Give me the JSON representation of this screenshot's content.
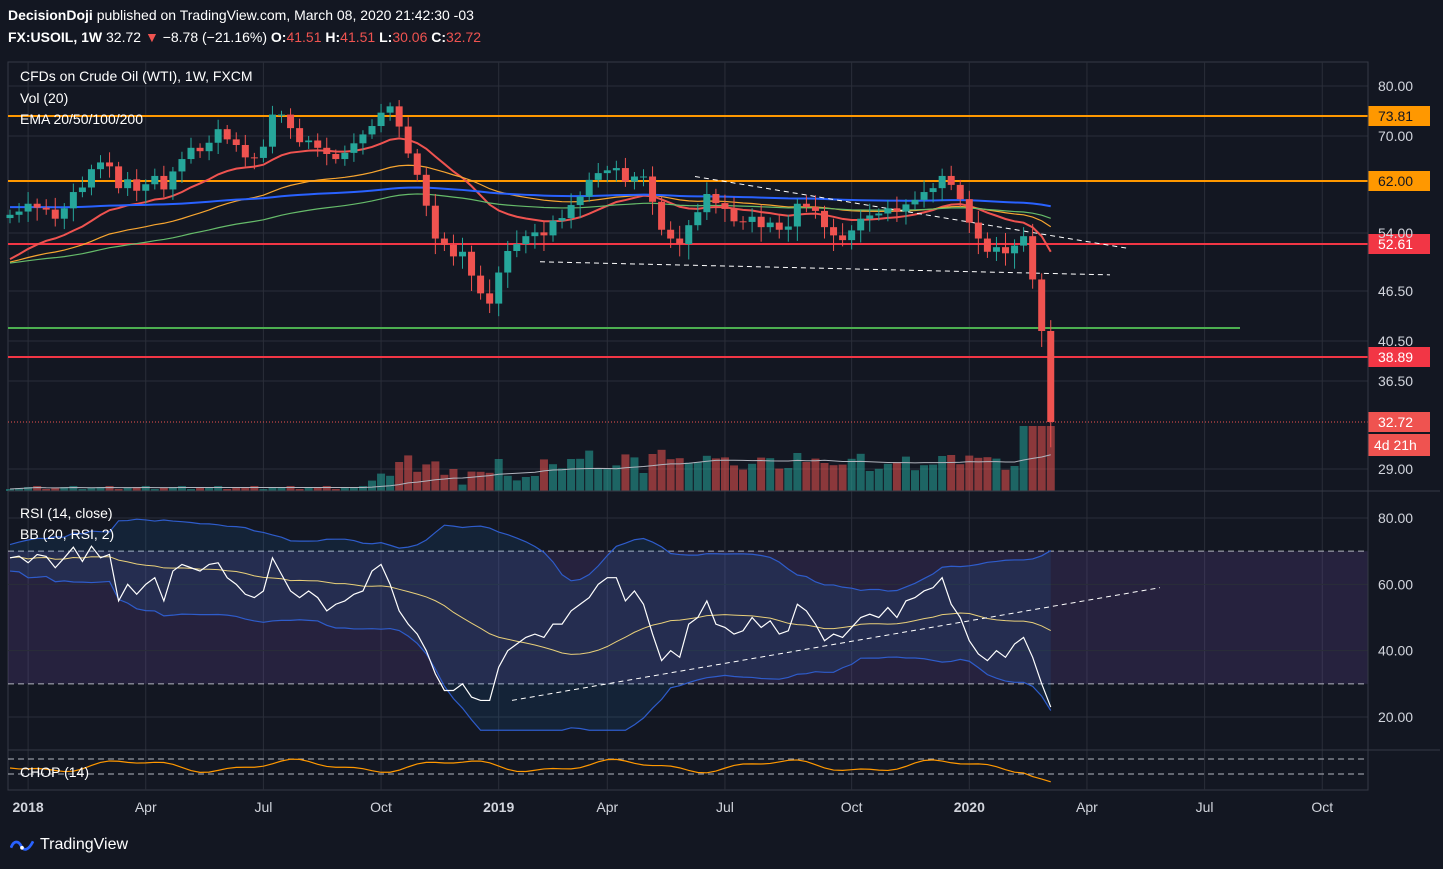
{
  "header": {
    "author": "DecisionDoji",
    "published_text": "published on TradingView.com, March 08, 2020 21:42:30 -03",
    "symbol": "FX:USOIL, 1W",
    "last": "32.72",
    "change": "−8.78 (−21.16%)",
    "open_label": "O:",
    "open": "41.51",
    "high_label": "H:",
    "high": "41.51",
    "low_label": "L:",
    "low": "30.06",
    "close_label": "C:",
    "close": "32.72"
  },
  "legend": {
    "main_title": "CFDs on Crude Oil (WTI), 1W, FXCM",
    "vol": "Vol (20)",
    "ema": "EMA 20/50/100/200",
    "rsi": "RSI (14, close)",
    "bb": "BB (20, RSI, 2)",
    "chop": "CHOP (14)"
  },
  "brand": {
    "name": "TradingView",
    "logo_icon": "tradingview-logo-icon"
  },
  "colors": {
    "background": "#131722",
    "up": "#26a69a",
    "down": "#ef5350",
    "orange_level": "#ff9800",
    "red_level": "#f23645",
    "green_level": "#4caf50",
    "ema20": "#ef5350",
    "ema50": "#f7a530",
    "ema100": "#66bb6a",
    "ema200": "#2962ff",
    "rsi": "#ffffff",
    "bb_band": "#2e5ccb",
    "bb_basis": "#e8cf7a",
    "chop": "#ff9800"
  },
  "chart_data": [
    {
      "type": "candlestick",
      "title": "CFDs on Crude Oil (WTI), 1W, FXCM",
      "x_tick_labels": [
        "2018",
        "Apr",
        "Jul",
        "Oct",
        "2019",
        "Apr",
        "Jul",
        "Oct",
        "2020",
        "Apr",
        "Jul",
        "Oct"
      ],
      "x_tick_weeks": [
        2,
        15,
        28,
        41,
        54,
        66,
        79,
        93,
        106,
        119,
        132,
        145
      ],
      "y_tick_labels": [
        "80.00",
        "70.00",
        "54.00",
        "46.50",
        "40.50",
        "36.50",
        "29.00"
      ],
      "y_tick_values": [
        80.0,
        70.0,
        54.0,
        46.5,
        40.5,
        36.5,
        29.0
      ],
      "ylim": [
        28.0,
        82.0
      ],
      "price_levels": [
        {
          "value": 73.81,
          "label": "73.81",
          "color": "#ff9800"
        },
        {
          "value": 62.0,
          "label": "62.00",
          "color": "#ff9800"
        },
        {
          "value": 52.61,
          "label": "52.61",
          "color": "#f23645"
        },
        {
          "value": 38.89,
          "label": "38.89",
          "color": "#f23645"
        },
        {
          "value": 41.8,
          "label": "",
          "color": "#4caf50"
        }
      ],
      "last_price": {
        "value": 32.72,
        "label": "32.72",
        "countdown": "4d 21h"
      },
      "close": [
        56.8,
        57.3,
        58.5,
        57.9,
        57.6,
        56.2,
        57.8,
        60.3,
        61.0,
        64.1,
        65.3,
        64.6,
        60.9,
        62.3,
        60.5,
        61.5,
        62.9,
        60.7,
        63.7,
        65.9,
        67.9,
        67.3,
        68.8,
        71.3,
        69.4,
        68.4,
        66.2,
        66.1,
        68.1,
        74.1,
        74.1,
        71.5,
        68.9,
        69.2,
        67.9,
        66.8,
        65.9,
        67.0,
        68.7,
        70.3,
        71.9,
        74.5,
        75.8,
        71.8,
        66.9,
        63.1,
        58.2,
        53.3,
        52.5,
        51.0,
        51.6,
        48.5,
        46.2,
        44.9,
        48.9,
        51.7,
        52.6,
        53.6,
        54.1,
        53.7,
        55.9,
        56.3,
        58.3,
        59.6,
        62.2,
        63.4,
        63.9,
        64.3,
        61.9,
        62.8,
        62.8,
        58.8,
        54.5,
        53.3,
        52.6,
        55.2,
        57.2,
        60.0,
        58.6,
        57.7,
        55.8,
        55.7,
        56.5,
        54.9,
        55.6,
        54.5,
        55.0,
        58.5,
        58.0,
        57.4,
        54.9,
        53.7,
        53.1,
        54.4,
        56.2,
        56.7,
        57.0,
        57.8,
        57.3,
        58.4,
        59.1,
        60.3,
        60.9,
        62.9,
        61.4,
        59.2,
        55.6,
        53.3,
        51.6,
        52.2,
        51.4,
        52.4,
        53.6,
        48.0,
        41.5,
        32.72
      ],
      "ema20_2020_end": 50.8,
      "dashed_trendlines": [
        "descending channel top",
        "channel bottom"
      ]
    },
    {
      "type": "bar",
      "title": "Vol (20)",
      "note": "relative volume bars with 20-period average"
    },
    {
      "type": "line",
      "title": "RSI (14, close)",
      "y_tick_labels": [
        "80.00",
        "60.00",
        "40.00",
        "20.00"
      ],
      "y_tick_values": [
        80,
        60,
        40,
        20
      ],
      "ylim": [
        10,
        90
      ],
      "bands": [
        70,
        30
      ],
      "rsi": [
        68.0,
        68.5,
        66.5,
        69.0,
        68.4,
        65.0,
        68.0,
        71.2,
        66.9,
        71.5,
        68.0,
        69.0,
        55.0,
        60.0,
        57.0,
        60.0,
        62.0,
        55.0,
        64.0,
        66.0,
        65.0,
        64.0,
        66.0,
        66.5,
        62.0,
        60.0,
        57.0,
        56.0,
        58.0,
        68.0,
        63.0,
        58.0,
        56.0,
        58.0,
        56.0,
        52.0,
        54.0,
        55.0,
        57.0,
        58.0,
        64.0,
        66.0,
        60.0,
        52.0,
        48.0,
        45.0,
        40.0,
        33.0,
        28.0,
        28.0,
        30.0,
        26.0,
        25.0,
        25.0,
        35.0,
        40.0,
        42.0,
        44.0,
        45.0,
        44.0,
        48.0,
        48.0,
        52.0,
        54.0,
        56.0,
        60.0,
        62.0,
        62.0,
        55.0,
        58.0,
        54.0,
        45.0,
        37.0,
        40.0,
        38.0,
        48.0,
        50.0,
        55.0,
        48.0,
        47.0,
        45.0,
        46.0,
        50.0,
        47.0,
        49.0,
        45.0,
        46.0,
        54.0,
        52.0,
        48.0,
        43.0,
        45.0,
        44.0,
        47.0,
        50.0,
        51.0,
        50.0,
        53.0,
        50.0,
        55.0,
        56.0,
        58.0,
        59.0,
        62.0,
        54.0,
        50.0,
        43.0,
        39.0,
        37.0,
        40.0,
        38.0,
        42.0,
        44.0,
        38.0,
        30.0,
        23.0
      ],
      "bb_note": "Bollinger bands on RSI (upper/lower blue, basis yellow)"
    },
    {
      "type": "line",
      "title": "CHOP (14)",
      "note": "choppiness index oscillator, orange"
    }
  ]
}
